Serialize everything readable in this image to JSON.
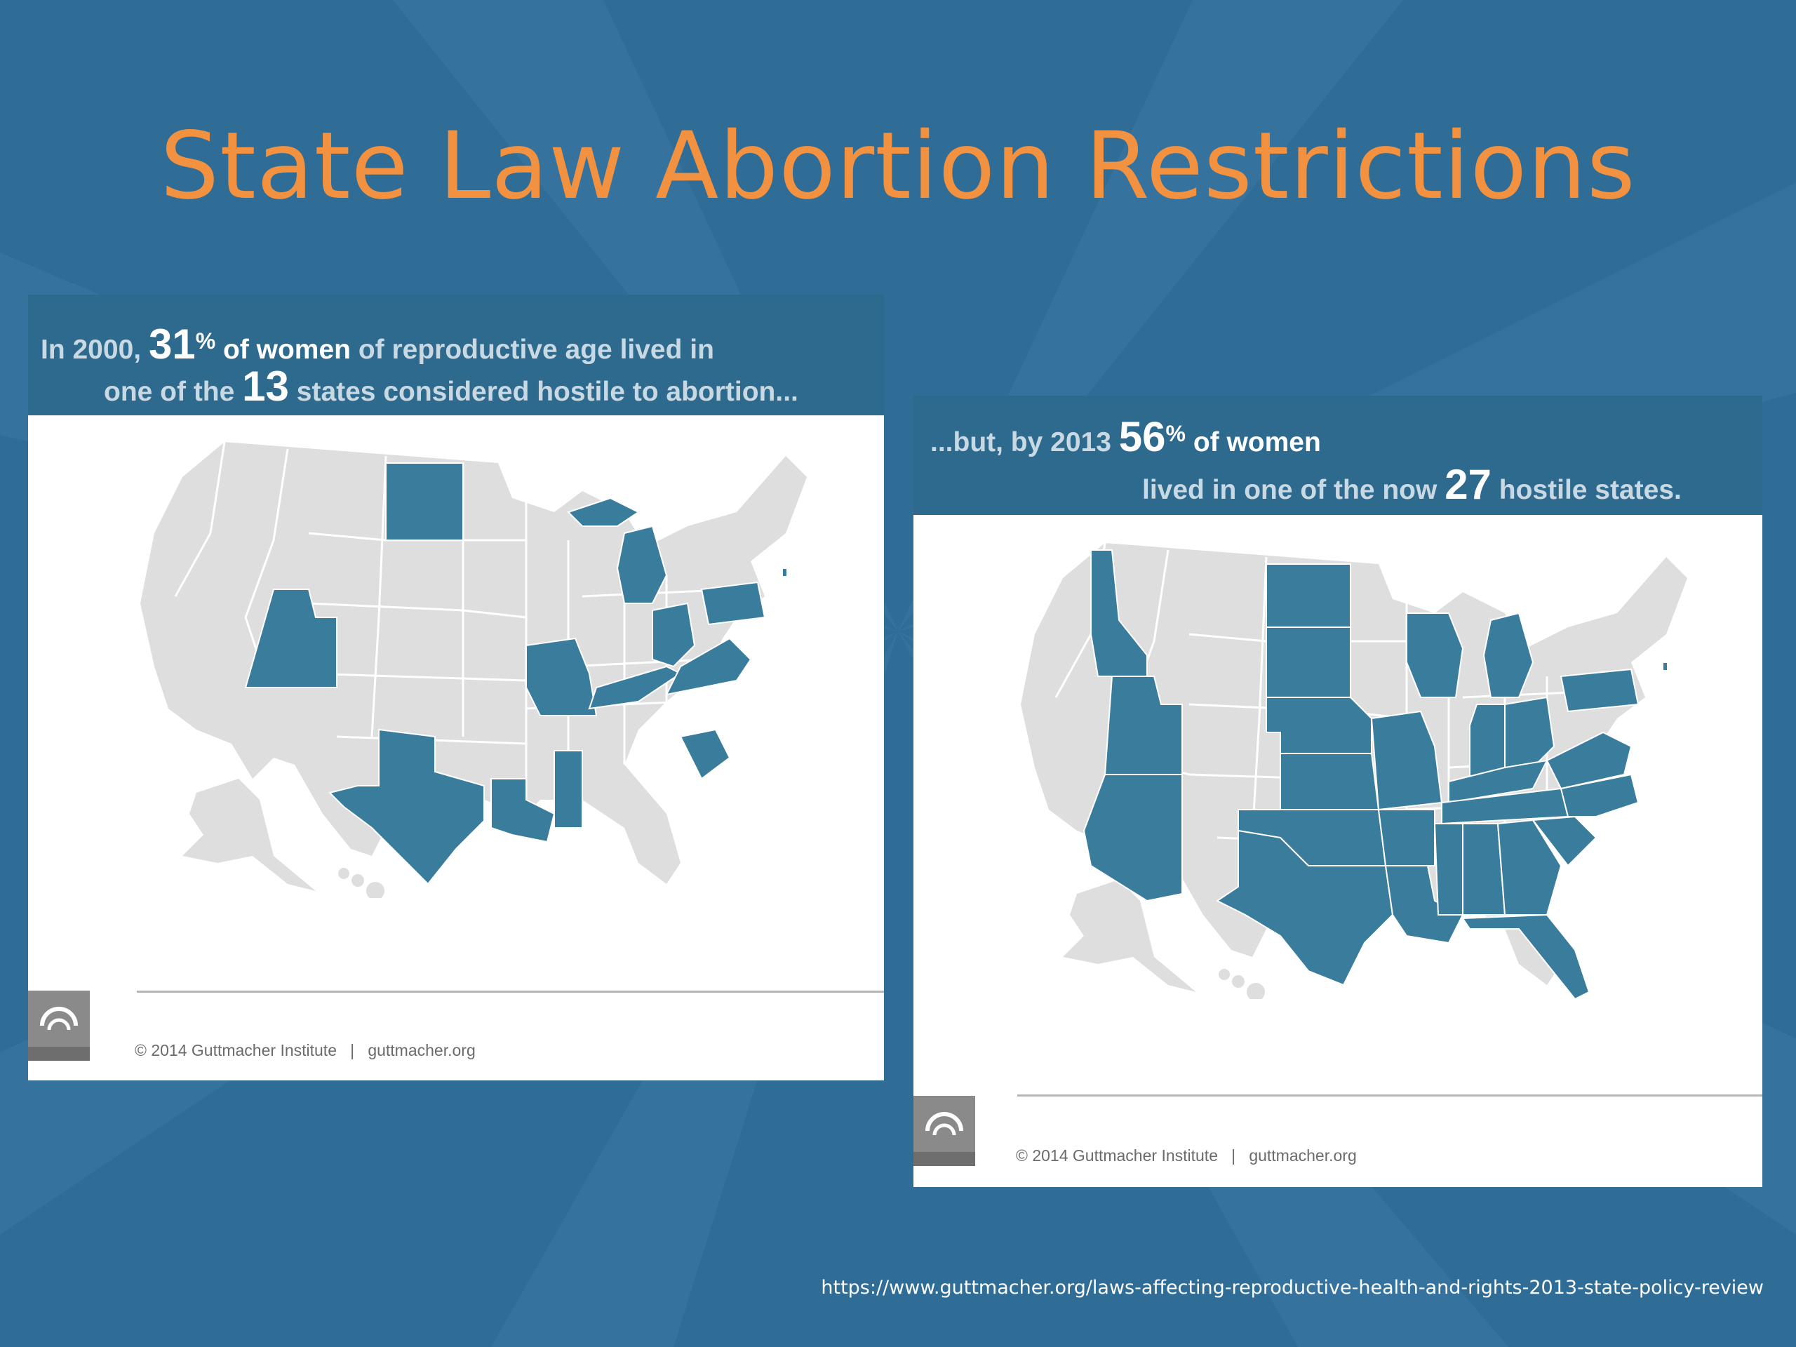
{
  "slide": {
    "title": "State Law Abortion Restrictions",
    "source_url": "https://www.guttmacher.org/laws-affecting-reproductive-health-and-rights-2013-state-policy-review"
  },
  "colors": {
    "background": "#2f6c96",
    "title": "#f2913f",
    "hostile_state": "#3a7c9c",
    "other_state": "#dedede",
    "header_band": "#2e6a8e"
  },
  "panels": [
    {
      "year": 2000,
      "header": {
        "l1_a": "In 2000,",
        "l1_pct_num": "31",
        "l1_pct_sign": "%",
        "l1_b": "of women",
        "l1_c": "of reproductive age lived in",
        "l2_a": "one of the",
        "l2_num": "13",
        "l2_b": "states considered hostile to abortion..."
      },
      "hostile_percent_women": 31,
      "hostile_state_count": 13,
      "hostile_states": [
        "ND",
        "UT",
        "MO",
        "TX",
        "LA",
        "MS",
        "MI",
        "OH",
        "PA",
        "KY",
        "VA",
        "SC",
        "RI"
      ],
      "footer": {
        "copyright": "© 2014 Guttmacher Institute",
        "sep": "|",
        "site": "guttmacher.org"
      }
    },
    {
      "year": 2013,
      "header": {
        "l1_a": "...but, by 2013",
        "l1_pct_num": "56",
        "l1_pct_sign": "%",
        "l1_b": "of women",
        "l2_a": "lived in one of the now",
        "l2_num": "27",
        "l2_b": "hostile states."
      },
      "hostile_percent_women": 56,
      "hostile_state_count": 27,
      "hostile_states": [
        "ID",
        "UT",
        "AZ",
        "ND",
        "SD",
        "NE",
        "KS",
        "OK",
        "TX",
        "MO",
        "AR",
        "LA",
        "WI",
        "MI",
        "IN",
        "OH",
        "KY",
        "TN",
        "MS",
        "AL",
        "GA",
        "FL",
        "SC",
        "NC",
        "VA",
        "PA",
        "RI"
      ],
      "footer": {
        "copyright": "© 2014 Guttmacher Institute",
        "sep": "|",
        "site": "guttmacher.org"
      }
    }
  ]
}
